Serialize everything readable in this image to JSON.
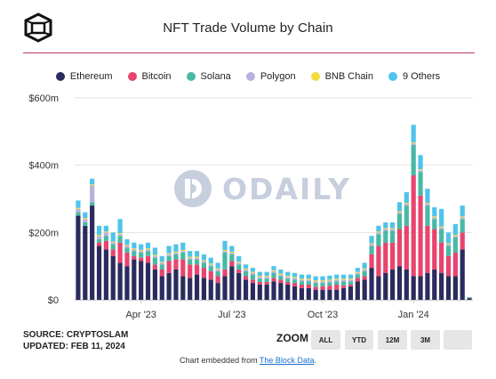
{
  "header": {
    "title": "NFT Trade Volume by Chain"
  },
  "legend": [
    {
      "label": "Ethereum",
      "color": "#2b2b5e"
    },
    {
      "label": "Bitcoin",
      "color": "#e8446e"
    },
    {
      "label": "Solana",
      "color": "#47b9a4"
    },
    {
      "label": "Polygon",
      "color": "#b9b0de"
    },
    {
      "label": "BNB Chain",
      "color": "#f2dc3c"
    },
    {
      "label": "9 Others",
      "color": "#4fc3ec"
    }
  ],
  "source": {
    "line1": "SOURCE: CRYPTOSLAM",
    "line2": "UPDATED: FEB 11, 2024"
  },
  "zoom": {
    "label": "ZOOM",
    "buttons": [
      "ALL",
      "YTD",
      "12M",
      "3M",
      ""
    ]
  },
  "footer": {
    "prefix": "Chart embedded from ",
    "link": "The Block Data",
    "suffix": "."
  },
  "watermark": {
    "text": "ODAILY"
  },
  "chart_data": {
    "type": "bar",
    "stacked": true,
    "interval": "weekly",
    "ylim": [
      0,
      600
    ],
    "yticks": [
      "$0",
      "$200m",
      "$400m",
      "$600m"
    ],
    "ytick_values": [
      0,
      200,
      400,
      600
    ],
    "xtick_labels": [
      "Apr '23",
      "Jul '23",
      "Oct '23",
      "Jan '24"
    ],
    "xtick_index": [
      9,
      22,
      35,
      48
    ],
    "series": [
      {
        "name": "Ethereum",
        "color": "#2b2b5e",
        "values": [
          250,
          220,
          280,
          160,
          150,
          130,
          110,
          100,
          120,
          115,
          110,
          90,
          70,
          80,
          90,
          70,
          65,
          75,
          65,
          60,
          50,
          70,
          100,
          80,
          60,
          50,
          45,
          45,
          55,
          50,
          45,
          40,
          35,
          35,
          30,
          30,
          30,
          30,
          35,
          40,
          55,
          60,
          95,
          70,
          80,
          90,
          100,
          90,
          70,
          70,
          80,
          90,
          80,
          70,
          70,
          150,
          5
        ]
      },
      {
        "name": "Bitcoin",
        "color": "#e8446e",
        "values": [
          0,
          0,
          0,
          10,
          25,
          20,
          60,
          40,
          10,
          10,
          20,
          15,
          20,
          35,
          30,
          50,
          40,
          30,
          30,
          25,
          20,
          20,
          15,
          10,
          10,
          10,
          8,
          8,
          10,
          10,
          8,
          10,
          10,
          10,
          8,
          10,
          12,
          15,
          8,
          5,
          10,
          10,
          40,
          90,
          90,
          80,
          110,
          130,
          300,
          240,
          140,
          120,
          90,
          60,
          70,
          50,
          0
        ]
      },
      {
        "name": "Solana",
        "color": "#47b9a4",
        "values": [
          10,
          10,
          10,
          10,
          15,
          15,
          20,
          15,
          15,
          15,
          15,
          20,
          15,
          15,
          15,
          20,
          15,
          15,
          15,
          15,
          15,
          50,
          20,
          15,
          15,
          15,
          10,
          10,
          15,
          10,
          10,
          10,
          10,
          10,
          12,
          10,
          10,
          10,
          12,
          10,
          10,
          15,
          25,
          35,
          35,
          35,
          45,
          60,
          90,
          70,
          60,
          30,
          40,
          30,
          45,
          40,
          2
        ]
      },
      {
        "name": "Polygon",
        "color": "#b9b0de",
        "values": [
          10,
          10,
          50,
          10,
          10,
          5,
          5,
          5,
          5,
          5,
          5,
          5,
          5,
          5,
          5,
          5,
          5,
          5,
          5,
          5,
          5,
          5,
          5,
          5,
          5,
          5,
          5,
          5,
          5,
          5,
          5,
          5,
          5,
          5,
          5,
          5,
          5,
          5,
          5,
          5,
          5,
          5,
          5,
          5,
          5,
          5,
          5,
          5,
          5,
          5,
          5,
          5,
          5,
          5,
          5,
          5,
          0
        ]
      },
      {
        "name": "BNB Chain",
        "color": "#f2dc3c",
        "values": [
          3,
          3,
          3,
          3,
          3,
          3,
          3,
          3,
          3,
          3,
          3,
          3,
          3,
          3,
          3,
          3,
          3,
          3,
          3,
          3,
          3,
          3,
          3,
          3,
          3,
          3,
          3,
          3,
          3,
          3,
          3,
          3,
          3,
          3,
          3,
          3,
          3,
          3,
          3,
          3,
          3,
          3,
          3,
          3,
          3,
          3,
          3,
          3,
          3,
          3,
          3,
          3,
          3,
          3,
          3,
          3,
          0
        ]
      },
      {
        "name": "9 Others",
        "color": "#4fc3ec",
        "values": [
          22,
          17,
          17,
          27,
          17,
          27,
          42,
          17,
          17,
          17,
          17,
          22,
          17,
          22,
          22,
          22,
          17,
          17,
          17,
          17,
          17,
          27,
          17,
          17,
          12,
          12,
          12,
          12,
          12,
          12,
          12,
          12,
          12,
          12,
          12,
          12,
          12,
          12,
          12,
          12,
          12,
          17,
          22,
          17,
          17,
          17,
          27,
          32,
          52,
          42,
          42,
          27,
          52,
          32,
          32,
          32,
          1
        ]
      }
    ]
  }
}
